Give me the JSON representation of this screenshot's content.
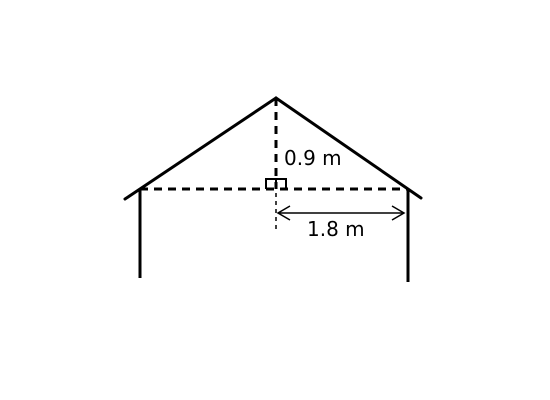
{
  "labels": {
    "height": "0.9 m",
    "half_width": "1.8 m"
  },
  "colors": {
    "stroke": "#000000",
    "background": "#ffffff"
  }
}
